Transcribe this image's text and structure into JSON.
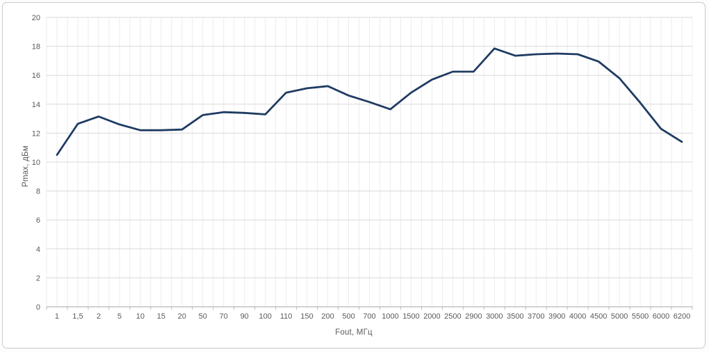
{
  "chart_data": {
    "type": "line",
    "title": "",
    "xlabel": "Fout, МГц",
    "ylabel": "Pmax, дБм",
    "categories": [
      "1",
      "1,5",
      "2",
      "5",
      "10",
      "15",
      "20",
      "50",
      "70",
      "90",
      "100",
      "110",
      "150",
      "200",
      "500",
      "700",
      "1000",
      "1500",
      "2000",
      "2500",
      "2900",
      "3000",
      "3500",
      "3700",
      "3900",
      "4000",
      "4500",
      "5000",
      "5500",
      "6000",
      "6200"
    ],
    "series": [
      {
        "name": "Pmax",
        "values": [
          10.5,
          12.65,
          13.15,
          12.6,
          12.2,
          12.2,
          12.25,
          13.25,
          13.45,
          13.4,
          13.3,
          14.8,
          15.1,
          15.25,
          14.6,
          14.15,
          13.65,
          14.8,
          15.7,
          16.25,
          16.25,
          17.85,
          17.35,
          17.45,
          17.5,
          17.45,
          16.95,
          15.8,
          14.1,
          12.3,
          11.4
        ]
      }
    ],
    "ylim": [
      0,
      20
    ],
    "ytick_step": 2,
    "yticks": [
      "0",
      "2",
      "4",
      "6",
      "8",
      "10",
      "12",
      "14",
      "16",
      "18",
      "20"
    ],
    "grid": "on",
    "legend": "none",
    "colors": {
      "line": "#1f3b63",
      "grid_major": "#d9d9d9",
      "grid_minor": "#ececec",
      "axis_line": "#b7b7b7",
      "tick_text": "#595959",
      "frame_border": "#c9c9c9",
      "background": "#ffffff"
    }
  }
}
